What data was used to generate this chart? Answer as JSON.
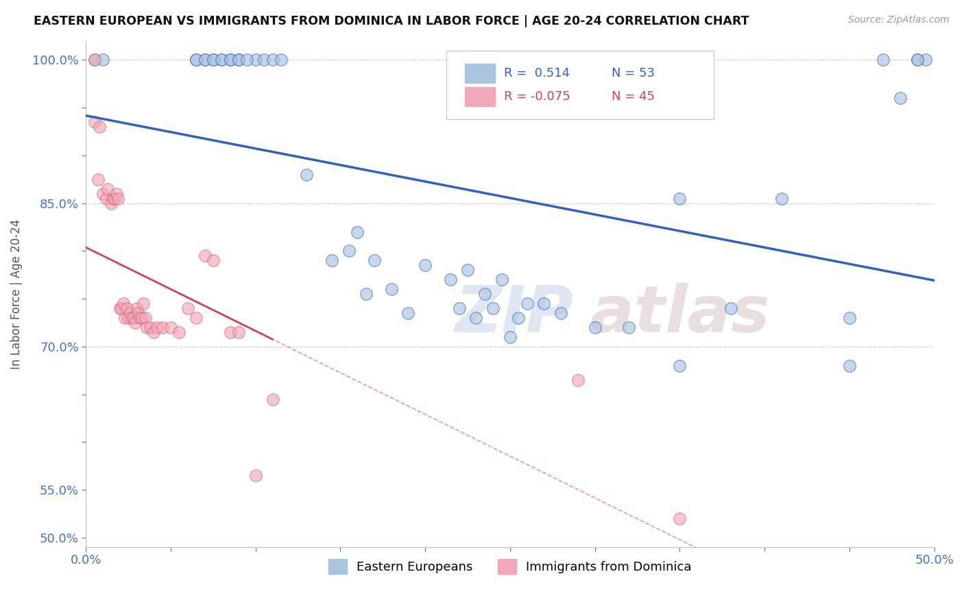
{
  "title": "EASTERN EUROPEAN VS IMMIGRANTS FROM DOMINICA IN LABOR FORCE | AGE 20-24 CORRELATION CHART",
  "source": "Source: ZipAtlas.com",
  "ylabel": "In Labor Force | Age 20-24",
  "xlim": [
    0.0,
    0.5
  ],
  "ylim": [
    0.49,
    1.02
  ],
  "blue_R": 0.514,
  "blue_N": 53,
  "pink_R": -0.075,
  "pink_N": 45,
  "blue_color": "#aac4e0",
  "pink_color": "#f0a8b8",
  "blue_line_color": "#3060c0",
  "pink_line_color": "#d04060",
  "blue_scatter_x": [
    0.005,
    0.01,
    0.065,
    0.07,
    0.075,
    0.08,
    0.085,
    0.09,
    0.1,
    0.105,
    0.11,
    0.115,
    0.13,
    0.145,
    0.155,
    0.16,
    0.165,
    0.17,
    0.18,
    0.19,
    0.2,
    0.215,
    0.22,
    0.225,
    0.23,
    0.235,
    0.24,
    0.245,
    0.25,
    0.255,
    0.26,
    0.27,
    0.28,
    0.3,
    0.32,
    0.35,
    0.38,
    0.41,
    0.45,
    0.47,
    0.48,
    0.49,
    0.495,
    0.065,
    0.07,
    0.075,
    0.08,
    0.085,
    0.09,
    0.095,
    0.35,
    0.45,
    0.49
  ],
  "blue_scatter_y": [
    1.0,
    1.0,
    1.0,
    1.0,
    1.0,
    1.0,
    1.0,
    1.0,
    1.0,
    1.0,
    1.0,
    1.0,
    0.88,
    0.79,
    0.8,
    0.82,
    0.755,
    0.79,
    0.76,
    0.735,
    0.785,
    0.77,
    0.74,
    0.78,
    0.73,
    0.755,
    0.74,
    0.77,
    0.71,
    0.73,
    0.745,
    0.745,
    0.735,
    0.72,
    0.72,
    0.855,
    0.74,
    0.855,
    0.73,
    1.0,
    0.96,
    1.0,
    1.0,
    1.0,
    1.0,
    1.0,
    1.0,
    1.0,
    1.0,
    1.0,
    0.68,
    0.68,
    1.0
  ],
  "pink_scatter_x": [
    0.005,
    0.005,
    0.007,
    0.008,
    0.01,
    0.012,
    0.013,
    0.015,
    0.016,
    0.017,
    0.018,
    0.019,
    0.02,
    0.021,
    0.022,
    0.023,
    0.024,
    0.025,
    0.026,
    0.027,
    0.028,
    0.029,
    0.03,
    0.031,
    0.032,
    0.033,
    0.034,
    0.035,
    0.036,
    0.038,
    0.04,
    0.042,
    0.045,
    0.05,
    0.055,
    0.06,
    0.065,
    0.07,
    0.075,
    0.085,
    0.09,
    0.1,
    0.11,
    0.29,
    0.35
  ],
  "pink_scatter_y": [
    0.935,
    1.0,
    0.875,
    0.93,
    0.86,
    0.855,
    0.865,
    0.85,
    0.855,
    0.855,
    0.86,
    0.855,
    0.74,
    0.74,
    0.745,
    0.73,
    0.74,
    0.73,
    0.735,
    0.73,
    0.73,
    0.725,
    0.74,
    0.735,
    0.73,
    0.73,
    0.745,
    0.73,
    0.72,
    0.72,
    0.715,
    0.72,
    0.72,
    0.72,
    0.715,
    0.74,
    0.73,
    0.795,
    0.79,
    0.715,
    0.715,
    0.565,
    0.645,
    0.665,
    0.52
  ]
}
